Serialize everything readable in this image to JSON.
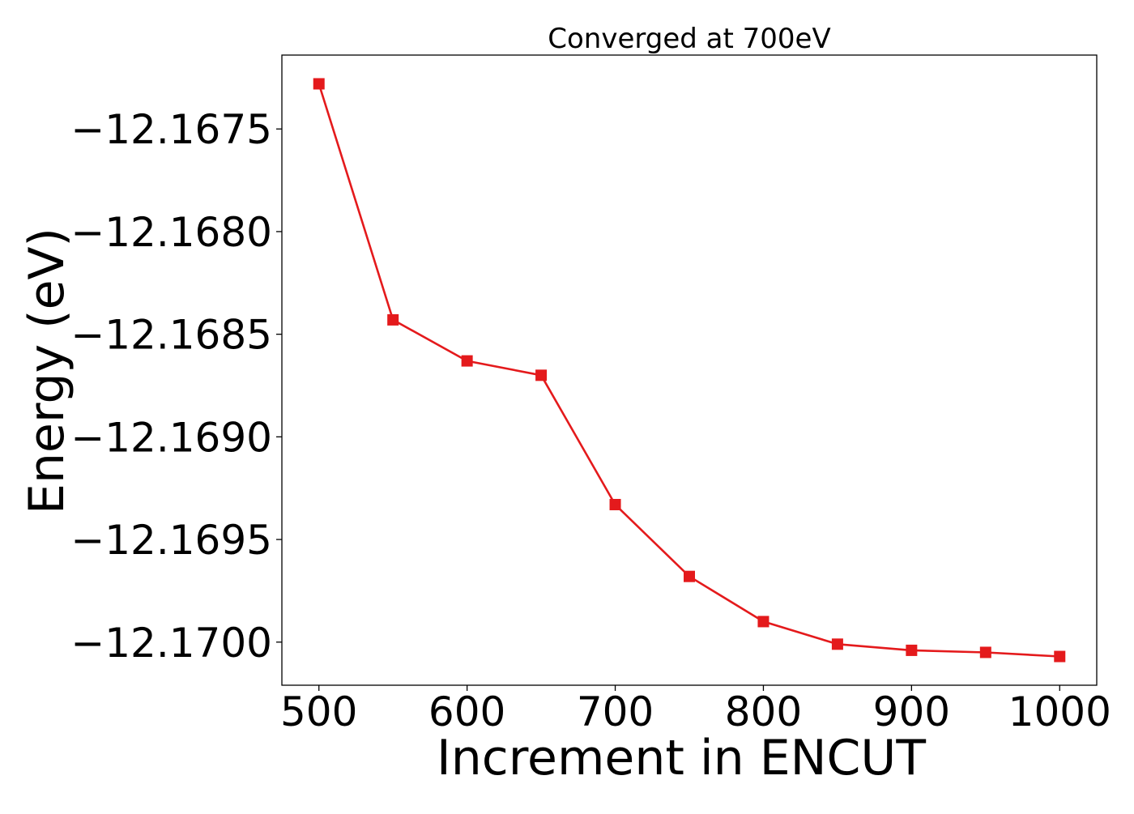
{
  "chart_data": {
    "type": "line",
    "title": "Converged at 700eV",
    "xlabel": "Increment in ENCUT",
    "ylabel": "Energy (eV)",
    "x": [
      500,
      550,
      600,
      650,
      700,
      750,
      800,
      850,
      900,
      950,
      1000
    ],
    "series": [
      {
        "values": [
          -12.16728,
          -12.16843,
          -12.16863,
          -12.1687,
          -12.16933,
          -12.16968,
          -12.1699,
          -12.17001,
          -12.17004,
          -12.17005,
          -12.17007
        ],
        "color": "#e41a1c",
        "marker": "square"
      }
    ],
    "xticks": [
      500,
      600,
      700,
      800,
      900,
      1000
    ],
    "xtick_labels": [
      "500",
      "600",
      "700",
      "800",
      "900",
      "1000"
    ],
    "yticks": [
      -12.1675,
      -12.168,
      -12.1685,
      -12.169,
      -12.1695,
      -12.17
    ],
    "ytick_labels": [
      "−12.1675",
      "−12.1680",
      "−12.1685",
      "−12.1690",
      "−12.1695",
      "−12.1700"
    ],
    "xlim": [
      475,
      1025
    ],
    "ylim": [
      -12.17021,
      -12.16714
    ],
    "grid": false,
    "legend": false
  }
}
